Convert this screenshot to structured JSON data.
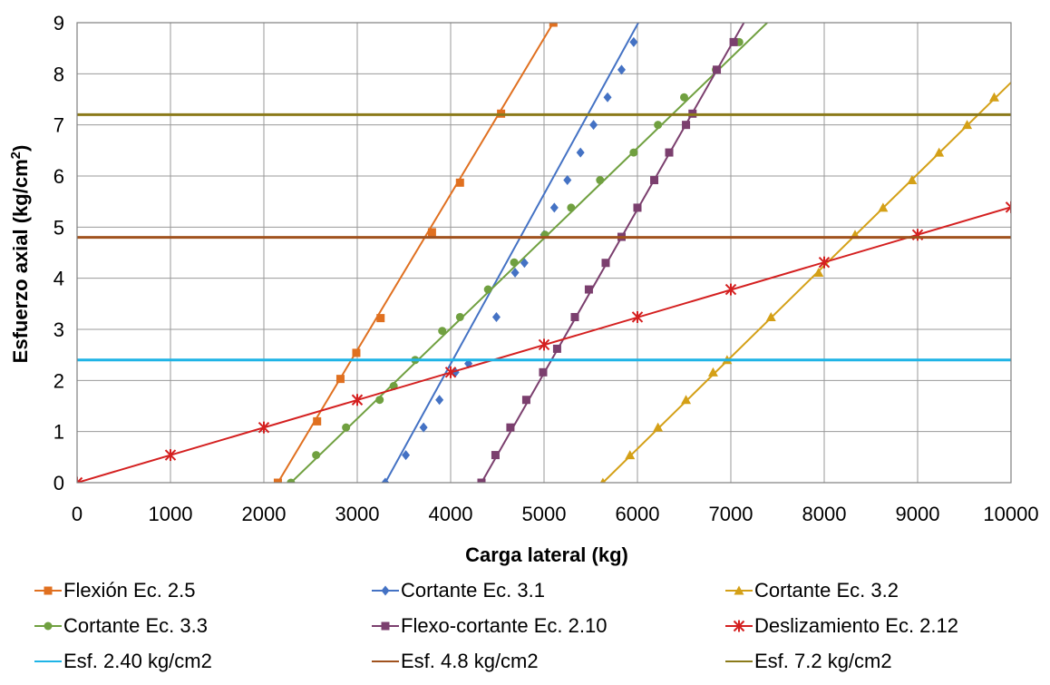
{
  "chart_data": {
    "type": "line",
    "title": "",
    "xlabel": "Carga lateral (kg)",
    "ylabel_main": "Esfuerzo axial (kg/cm",
    "ylabel_sup": "2",
    "ylabel_end": ")",
    "xlim": [
      0,
      10000
    ],
    "ylim": [
      0,
      9
    ],
    "xticks": [
      0,
      1000,
      2000,
      3000,
      4000,
      5000,
      6000,
      7000,
      8000,
      9000,
      10000
    ],
    "yticks": [
      0,
      1,
      2,
      3,
      4,
      5,
      6,
      7,
      8,
      9
    ],
    "grid": true,
    "legend_position": "bottom",
    "series": [
      {
        "name": "Flexión Ec. 2.5",
        "color": "#E07020",
        "marker": "square",
        "x": [
          2150,
          2570,
          2820,
          2990,
          3250,
          3800,
          4100,
          4540,
          5100
        ],
        "y": [
          0,
          1.2,
          2.03,
          2.54,
          3.22,
          4.9,
          5.87,
          7.22,
          9.0
        ],
        "line_x": [
          2150,
          5100
        ],
        "line_y": [
          0,
          9.0
        ]
      },
      {
        "name": "Cortante Ec. 3.1",
        "color": "#4472C4",
        "marker": "diamond",
        "x": [
          3300,
          3520,
          3710,
          3880,
          4050,
          4190,
          4490,
          4690,
          4790,
          5000,
          5110,
          5250,
          5390,
          5530,
          5680,
          5830,
          5960
        ],
        "y": [
          0,
          0.54,
          1.08,
          1.62,
          2.16,
          2.33,
          3.24,
          4.11,
          4.3,
          4.85,
          5.38,
          5.92,
          6.46,
          7.0,
          7.54,
          8.08,
          8.62
        ],
        "line_x": [
          3300,
          6010
        ],
        "line_y": [
          0,
          9.0
        ]
      },
      {
        "name": "Cortante Ec. 3.2",
        "color": "#D4A017",
        "marker": "triangle",
        "x": [
          5630,
          5920,
          6220,
          6520,
          6810,
          6960,
          7430,
          7940,
          8330,
          8630,
          8940,
          9230,
          9530,
          9820
        ],
        "y": [
          0,
          0.54,
          1.08,
          1.62,
          2.16,
          2.4,
          3.24,
          4.11,
          4.85,
          5.38,
          5.92,
          6.46,
          7.0,
          7.54
        ],
        "line_x": [
          5630,
          10000
        ],
        "line_y": [
          0,
          7.83
        ]
      },
      {
        "name": "Cortante Ec. 3.3",
        "color": "#70A040",
        "marker": "circle",
        "x": [
          2290,
          2560,
          2880,
          3240,
          3390,
          3620,
          3910,
          4100,
          4400,
          4680,
          5010,
          5290,
          5600,
          5960,
          6220,
          6500,
          6840,
          7090
        ],
        "y": [
          0,
          0.54,
          1.08,
          1.62,
          1.89,
          2.4,
          2.97,
          3.24,
          3.78,
          4.31,
          4.85,
          5.38,
          5.92,
          6.46,
          7.0,
          7.54,
          8.08,
          8.62
        ],
        "line_x": [
          2290,
          7390
        ],
        "line_y": [
          0,
          9.0
        ]
      },
      {
        "name": "Flexo-cortante Ec. 2.10",
        "color": "#7B3F6E",
        "marker": "square",
        "x": [
          4330,
          4480,
          4640,
          4810,
          4990,
          5140,
          5330,
          5480,
          5660,
          5830,
          6000,
          6180,
          6340,
          6520,
          6590,
          6850,
          7030
        ],
        "y": [
          0,
          0.54,
          1.08,
          1.62,
          2.16,
          2.62,
          3.24,
          3.78,
          4.3,
          4.81,
          5.38,
          5.92,
          6.46,
          7.0,
          7.22,
          8.08,
          8.62
        ],
        "line_x": [
          4330,
          7140
        ],
        "line_y": [
          0,
          9.0
        ]
      },
      {
        "name": "Deslizamiento Ec. 2.12",
        "color": "#D42020",
        "marker": "asterisk",
        "x": [
          0,
          1000,
          2000,
          3000,
          4000,
          5000,
          6000,
          7000,
          8000,
          9000,
          10000
        ],
        "y": [
          0,
          0.54,
          1.08,
          1.62,
          2.16,
          2.7,
          3.24,
          3.78,
          4.31,
          4.85,
          5.39
        ],
        "line_x": [
          0,
          10000
        ],
        "line_y": [
          0,
          5.39
        ]
      },
      {
        "name": "Esf. 2.40 kg/cm2",
        "color": "#1EB4E6",
        "marker": "none",
        "x": [
          0,
          10000
        ],
        "y": [
          2.4,
          2.4
        ],
        "line_x": [
          0,
          10000
        ],
        "line_y": [
          2.4,
          2.4
        ]
      },
      {
        "name": "Esf. 4.8 kg/cm2",
        "color": "#A0521E",
        "marker": "none",
        "x": [
          0,
          10000
        ],
        "y": [
          4.8,
          4.8
        ],
        "line_x": [
          0,
          10000
        ],
        "line_y": [
          4.8,
          4.8
        ]
      },
      {
        "name": "Esf. 7.2 kg/cm2",
        "color": "#8B7A1A",
        "marker": "none",
        "x": [
          0,
          10000
        ],
        "y": [
          7.2,
          7.2
        ],
        "line_x": [
          0,
          10000
        ],
        "line_y": [
          7.2,
          7.2
        ]
      }
    ]
  }
}
